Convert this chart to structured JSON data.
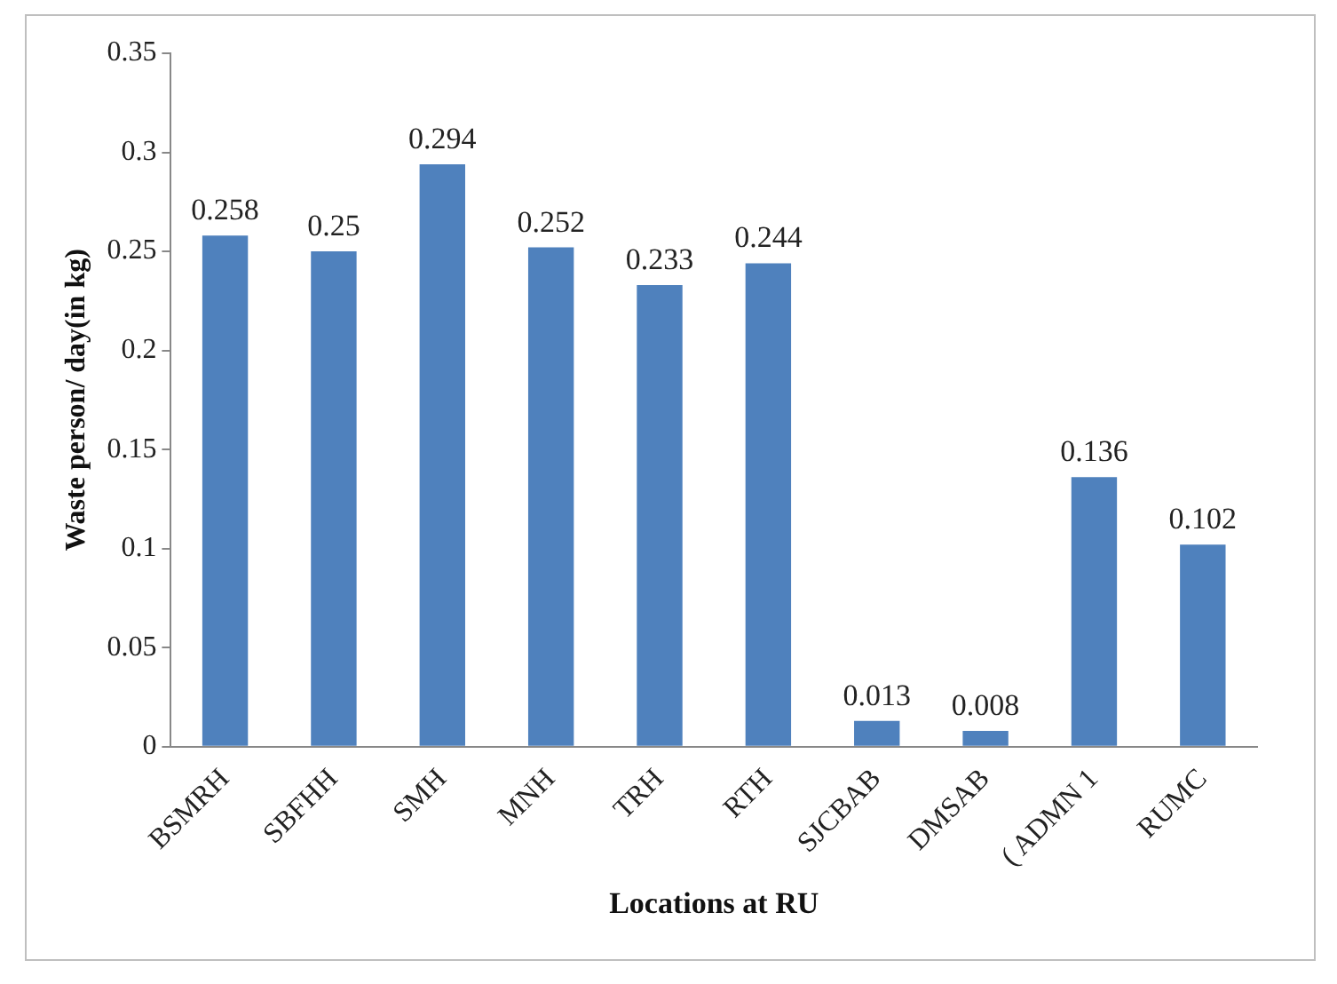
{
  "chart_data": {
    "type": "bar",
    "xlabel": "Locations at RU",
    "ylabel": "Waste person/ day(in kg)",
    "categories": [
      "BSMRH",
      "SBFHH",
      "SMH",
      "MNH",
      "TRH",
      "RTH",
      "SJCBAB",
      "DMSAB",
      "( ADMN 1",
      "RUMC"
    ],
    "values": [
      0.258,
      0.25,
      0.294,
      0.252,
      0.233,
      0.244,
      0.013,
      0.008,
      0.136,
      0.102
    ],
    "color": "#4f81bd",
    "ylim": [
      0,
      0.35
    ],
    "yticks": [
      0,
      0.05,
      0.1,
      0.15,
      0.2,
      0.25,
      0.3,
      0.35
    ],
    "grid": false,
    "legend": false,
    "data_labels": true
  }
}
